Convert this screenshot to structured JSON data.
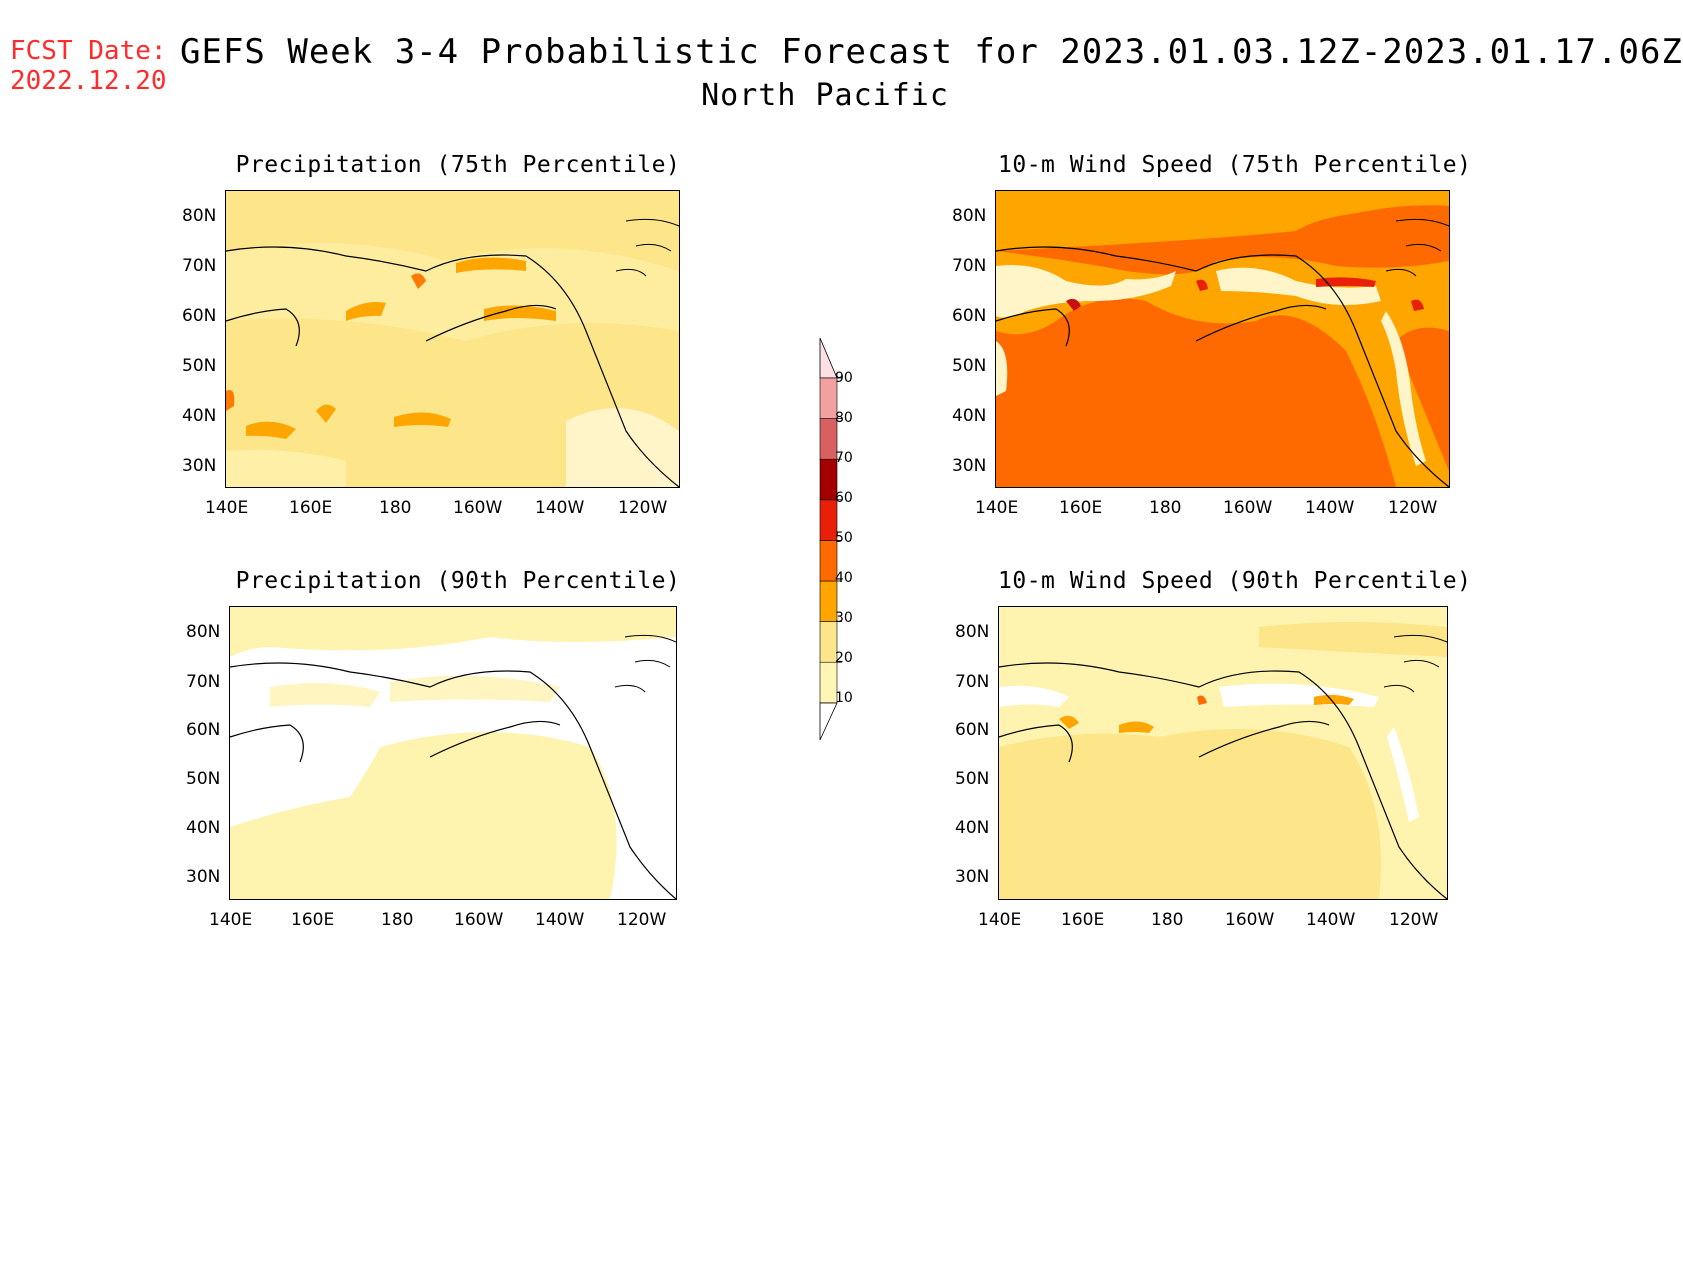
{
  "header": {
    "fcst_date_label": "FCST Date:",
    "fcst_date_value": "2022.12.20",
    "title": "GEFS Week 3-4 Probabilistic Forecast for 2023.01.03.12Z-2023.01.17.06Z",
    "subtitle": "North Pacific"
  },
  "axes": {
    "lat_labels": [
      "80N",
      "70N",
      "60N",
      "50N",
      "40N",
      "30N"
    ],
    "lon_labels": [
      "140E",
      "160E",
      "180",
      "160W",
      "140W",
      "120W"
    ]
  },
  "panels": [
    {
      "id": "precip-75",
      "title": "Precipitation (75th Percentile)"
    },
    {
      "id": "wind-75",
      "title": "10-m Wind Speed (75th Percentile)"
    },
    {
      "id": "precip-90",
      "title": "Precipitation (90th Percentile)"
    },
    {
      "id": "wind-90",
      "title": "10-m Wind Speed (90th Percentile)"
    }
  ],
  "colorbar": {
    "levels": [
      "10",
      "20",
      "30",
      "40",
      "50",
      "60",
      "70",
      "80",
      "90"
    ],
    "colors": [
      "#fff5b4",
      "#fde68a",
      "#ffa500",
      "#ff6a00",
      "#e8200a",
      "#a50000",
      "#d96060",
      "#f2a0a0",
      "#fde0e6"
    ]
  }
}
